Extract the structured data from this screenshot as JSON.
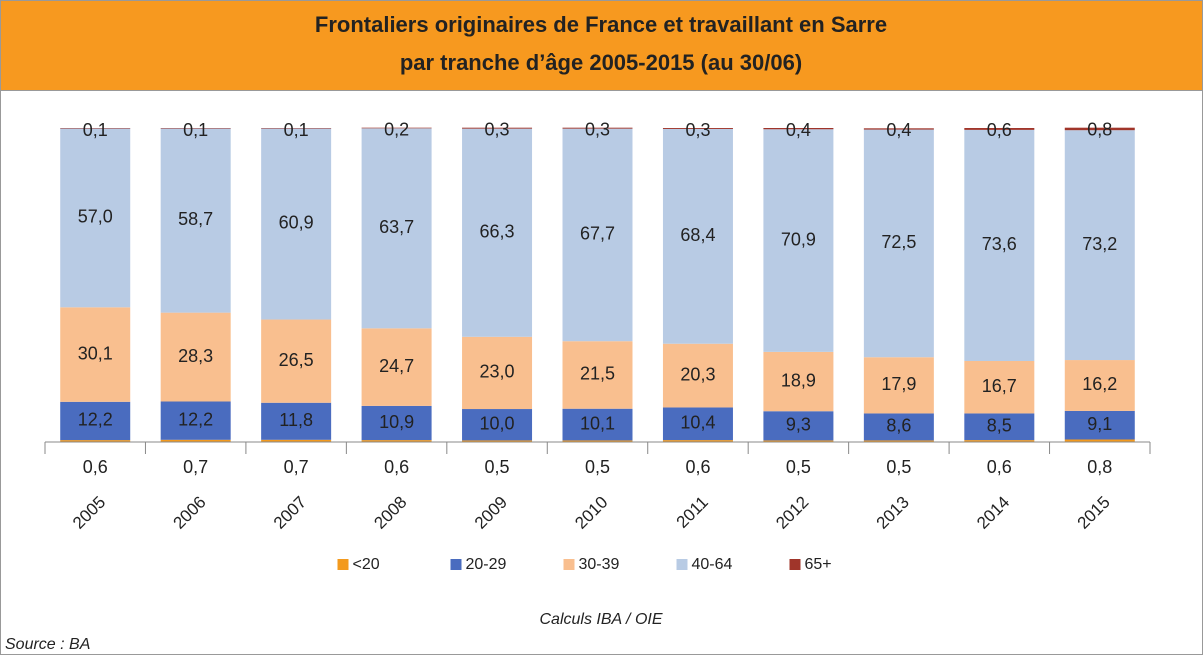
{
  "chart_data": {
    "type": "stacked_bar",
    "title": [
      "Frontaliers originaires de France et travaillant en Sarre",
      "par tranche d’âge 2005-2015 (au 30/06)"
    ],
    "categories": [
      "2005",
      "2006",
      "2007",
      "2008",
      "2009",
      "2010",
      "2011",
      "2012",
      "2013",
      "2014",
      "2015"
    ],
    "series": [
      {
        "name": "<20",
        "color": "#f39a1e",
        "values": [
          0.6,
          0.7,
          0.7,
          0.6,
          0.5,
          0.5,
          0.6,
          0.5,
          0.5,
          0.6,
          0.8
        ],
        "value_labels": [
          "0,6",
          "0,7",
          "0,7",
          "0,6",
          "0,5",
          "0,5",
          "0,6",
          "0,5",
          "0,5",
          "0,6",
          "0,8"
        ]
      },
      {
        "name": "20-29",
        "color": "#4a6cbf",
        "values": [
          12.2,
          12.2,
          11.8,
          10.9,
          10.0,
          10.1,
          10.4,
          9.3,
          8.6,
          8.5,
          9.1
        ],
        "value_labels": [
          "12,2",
          "12,2",
          "11,8",
          "10,9",
          "10,0",
          "10,1",
          "10,4",
          "9,3",
          "8,6",
          "8,5",
          "9,1"
        ]
      },
      {
        "name": "30-39",
        "color": "#f9bf8f",
        "values": [
          30.1,
          28.3,
          26.5,
          24.7,
          23.0,
          21.5,
          20.3,
          18.9,
          17.9,
          16.7,
          16.2
        ],
        "value_labels": [
          "30,1",
          "28,3",
          "26,5",
          "24,7",
          "23,0",
          "21,5",
          "20,3",
          "18,9",
          "17,9",
          "16,7",
          "16,2"
        ]
      },
      {
        "name": "40-64",
        "color": "#b8cbe4",
        "values": [
          57.0,
          58.7,
          60.9,
          63.7,
          66.3,
          67.7,
          68.4,
          70.9,
          72.5,
          73.6,
          73.2
        ],
        "value_labels": [
          "57,0",
          "58,7",
          "60,9",
          "63,7",
          "66,3",
          "67,7",
          "68,4",
          "70,9",
          "72,5",
          "73,6",
          "73,2"
        ]
      },
      {
        "name": "65+",
        "color": "#a0352a",
        "values": [
          0.1,
          0.1,
          0.1,
          0.2,
          0.3,
          0.3,
          0.3,
          0.4,
          0.4,
          0.6,
          0.8
        ],
        "value_labels": [
          "0,1",
          "0,1",
          "0,1",
          "0,2",
          "0,3",
          "0,3",
          "0,3",
          "0,4",
          "0,4",
          "0,6",
          "0,8"
        ]
      }
    ],
    "ylim": [
      0,
      100
    ],
    "note": "Calculs IBA / OIE",
    "source": "Source : BA"
  }
}
